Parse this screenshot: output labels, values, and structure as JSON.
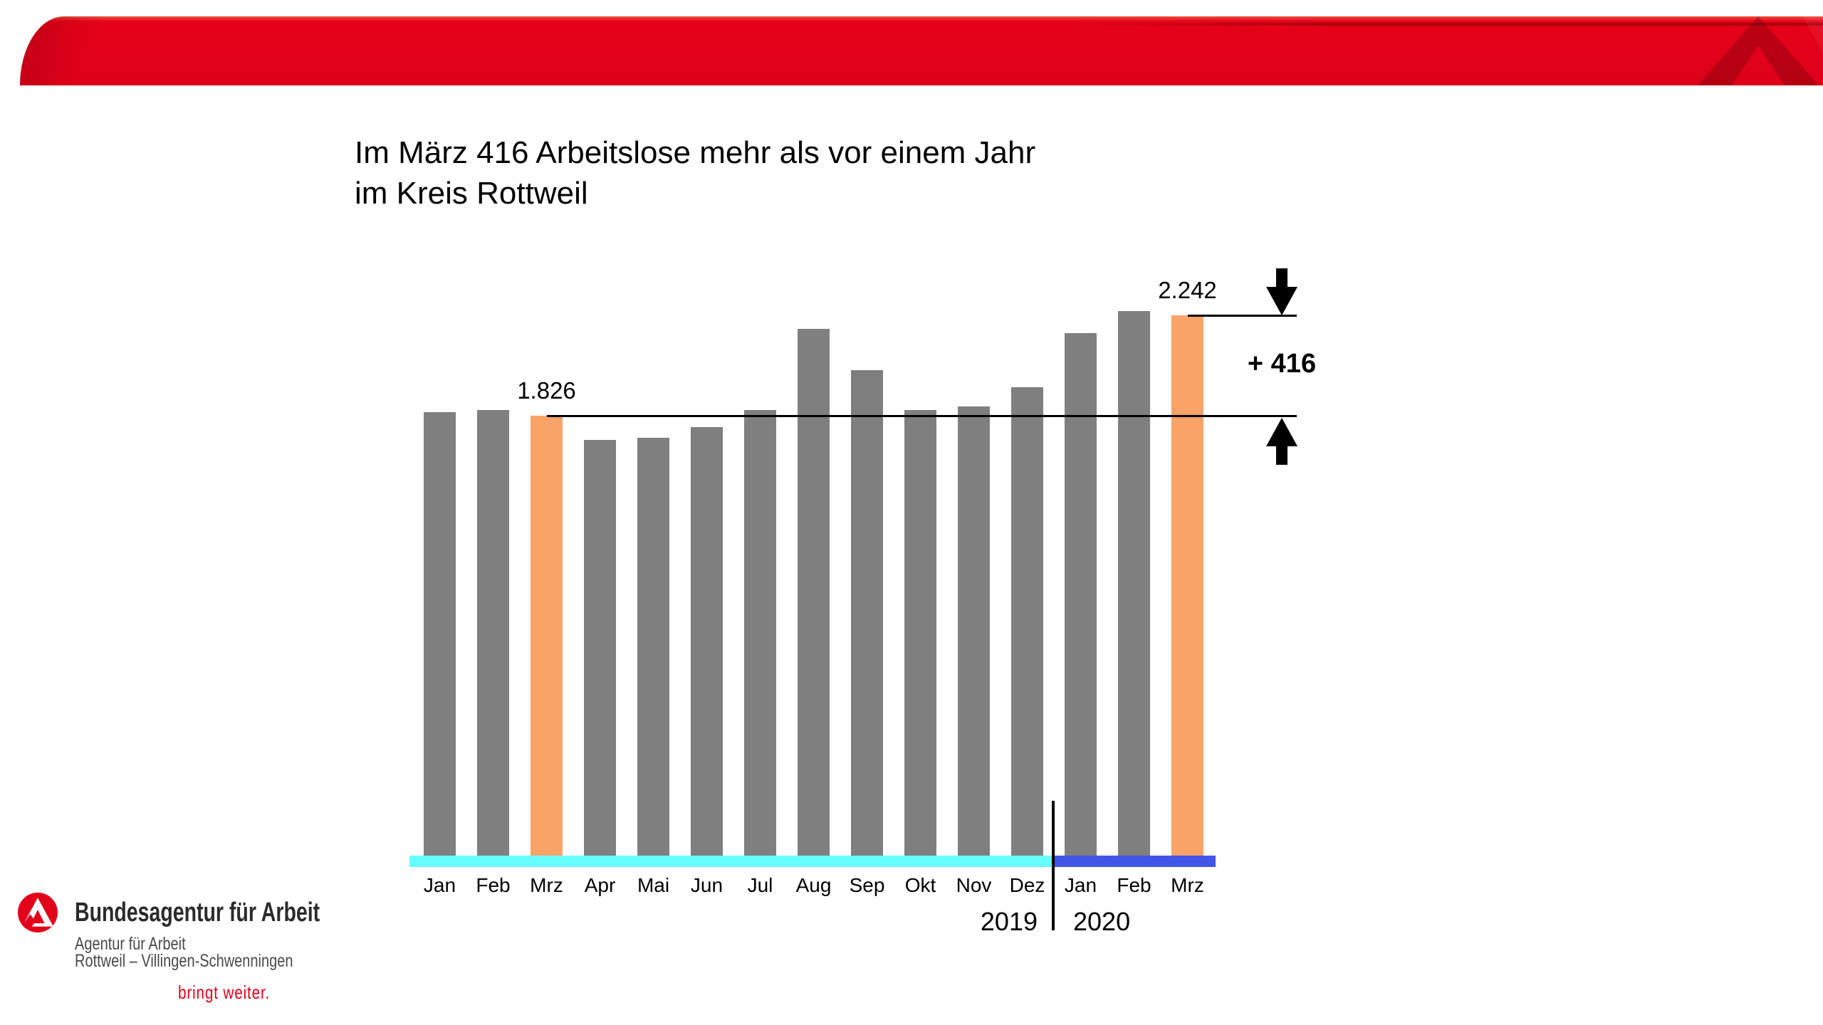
{
  "title": {
    "line1": "Im März 416 Arbeitslose mehr als vor einem Jahr",
    "line2": "im Kreis Rottweil"
  },
  "chart_data": {
    "type": "bar",
    "title": "Im März 416 Arbeitslose mehr als vor einem Jahr im Kreis Rottweil",
    "categories": [
      "Jan",
      "Feb",
      "Mrz",
      "Apr",
      "Mai",
      "Jun",
      "Jul",
      "Aug",
      "Sep",
      "Okt",
      "Nov",
      "Dez",
      "Jan",
      "Feb",
      "Mrz"
    ],
    "values": [
      1840,
      1850,
      1826,
      1725,
      1735,
      1780,
      1850,
      2185,
      2015,
      1850,
      1865,
      1945,
      2170,
      2260,
      2242
    ],
    "highlight_indices": [
      2,
      14
    ],
    "labeled_points": [
      {
        "index": 2,
        "value": 1826,
        "label": "1.826"
      },
      {
        "index": 14,
        "value": 2242,
        "label": "2.242"
      }
    ],
    "difference_label": "+ 416",
    "year_groups": [
      {
        "label": "2019",
        "start": 0,
        "count": 12,
        "underline_color": "#66ffff"
      },
      {
        "label": "2020",
        "start": 12,
        "count": 3,
        "underline_color": "#4155e8"
      }
    ],
    "bar_color": "#7f7f7f",
    "highlight_color": "#f9a368",
    "xlabel": "",
    "ylabel": "",
    "ylim": [
      0,
      2400
    ],
    "grid": false,
    "legend": false
  },
  "header": {
    "brand_color": "#e2001a"
  },
  "footer": {
    "org_name": "Bundesagentur für Arbeit",
    "office_line1": "Agentur für Arbeit",
    "office_line2": "Rottweil – Villingen-Schwenningen",
    "slogan": "bringt weiter.",
    "brand_color": "#e2001a"
  }
}
